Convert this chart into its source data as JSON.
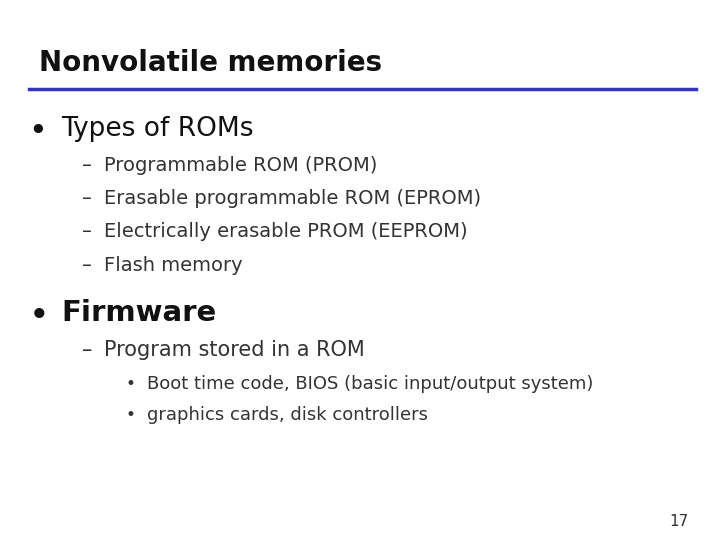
{
  "title": "Nonvolatile memories",
  "title_color": "#111111",
  "title_fontsize": 20,
  "line_color": "#3333bb",
  "background_color": "#ffffff",
  "bullet1": "Types of ROMs",
  "bullet1_color": "#111111",
  "bullet1_fontsize": 19,
  "sub_items": [
    "Programmable ROM (PROM)",
    "Erasable programmable ROM (EPROM)",
    "Electrically erasable PROM (EEPROM)",
    "Flash memory"
  ],
  "sub_fontsize": 14,
  "sub_color": "#333333",
  "bullet2": "Firmware",
  "bullet2_color": "#111111",
  "bullet2_fontsize": 21,
  "sub2_items": [
    "Program stored in a ROM"
  ],
  "sub2_fontsize": 15,
  "sub2_color": "#333333",
  "sub3_items": [
    "Boot time code, BIOS (basic input/output system)",
    "graphics cards, disk controllers"
  ],
  "sub3_fontsize": 13,
  "sub3_color": "#333333",
  "page_number": "17"
}
